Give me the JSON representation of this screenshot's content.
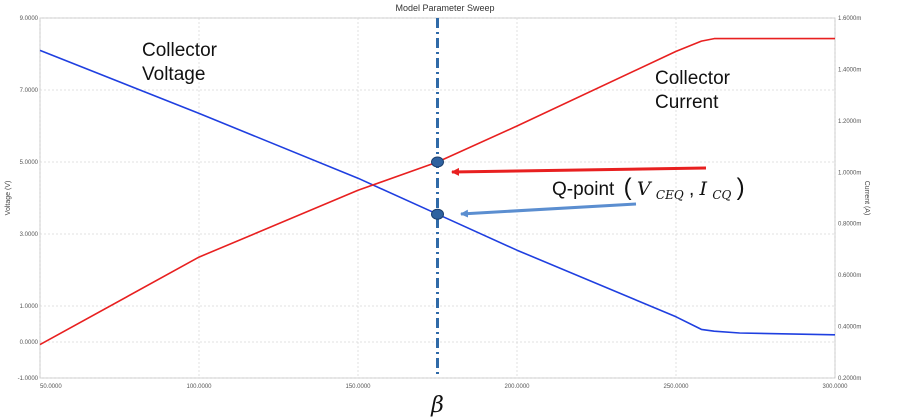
{
  "chart_data": {
    "type": "line",
    "title": "Model Parameter Sweep",
    "xlabel": "",
    "ylabel_left": "Voltage (V)",
    "ylabel_right": "Current (A)",
    "xlim": [
      50,
      300
    ],
    "ylim_left": [
      -1,
      9
    ],
    "ylim_right": [
      0.0002,
      0.0016
    ],
    "x_ticks": [
      "50.0000",
      "100.0000",
      "150.0000",
      "200.0000",
      "250.0000",
      "300.0000"
    ],
    "y_left_ticks": [
      "9.0000",
      "7.0000",
      "5.0000",
      "3.0000",
      "1.0000",
      "0.0000",
      "-1.0000"
    ],
    "y_right_ticks": [
      "1.6000m",
      "1.4000m",
      "1.2000m",
      "1.0000m",
      "0.8000m",
      "0.6000m",
      "0.4000m",
      "0.2000m"
    ],
    "grid": true,
    "series": [
      {
        "name": "Collector Voltage",
        "axis": "left",
        "color": "#1f3fe0",
        "x": [
          50,
          100,
          150,
          175,
          200,
          250,
          258,
          262,
          270,
          300
        ],
        "y": [
          8.1,
          6.35,
          4.55,
          3.55,
          2.55,
          0.7,
          0.35,
          0.3,
          0.25,
          0.2
        ]
      },
      {
        "name": "Collector Current",
        "axis": "right",
        "color": "#e82020",
        "x": [
          50,
          100,
          150,
          175,
          200,
          250,
          258,
          262,
          270,
          300
        ],
        "y": [
          0.00033,
          0.00067,
          0.00093,
          0.00104,
          0.00118,
          0.00147,
          0.00151,
          0.00152,
          0.00152,
          0.00152
        ]
      }
    ],
    "annotations": {
      "collector_voltage_label": [
        "Collector",
        "Voltage"
      ],
      "collector_current_label": [
        "Collector",
        "Current"
      ],
      "qpoint_label": "Q-point",
      "qpoint_tuple": [
        "(",
        "V",
        "CEQ",
        ", ",
        "I",
        "CQ",
        ")"
      ],
      "beta_label": "β",
      "qpoint_x": 175
    }
  }
}
